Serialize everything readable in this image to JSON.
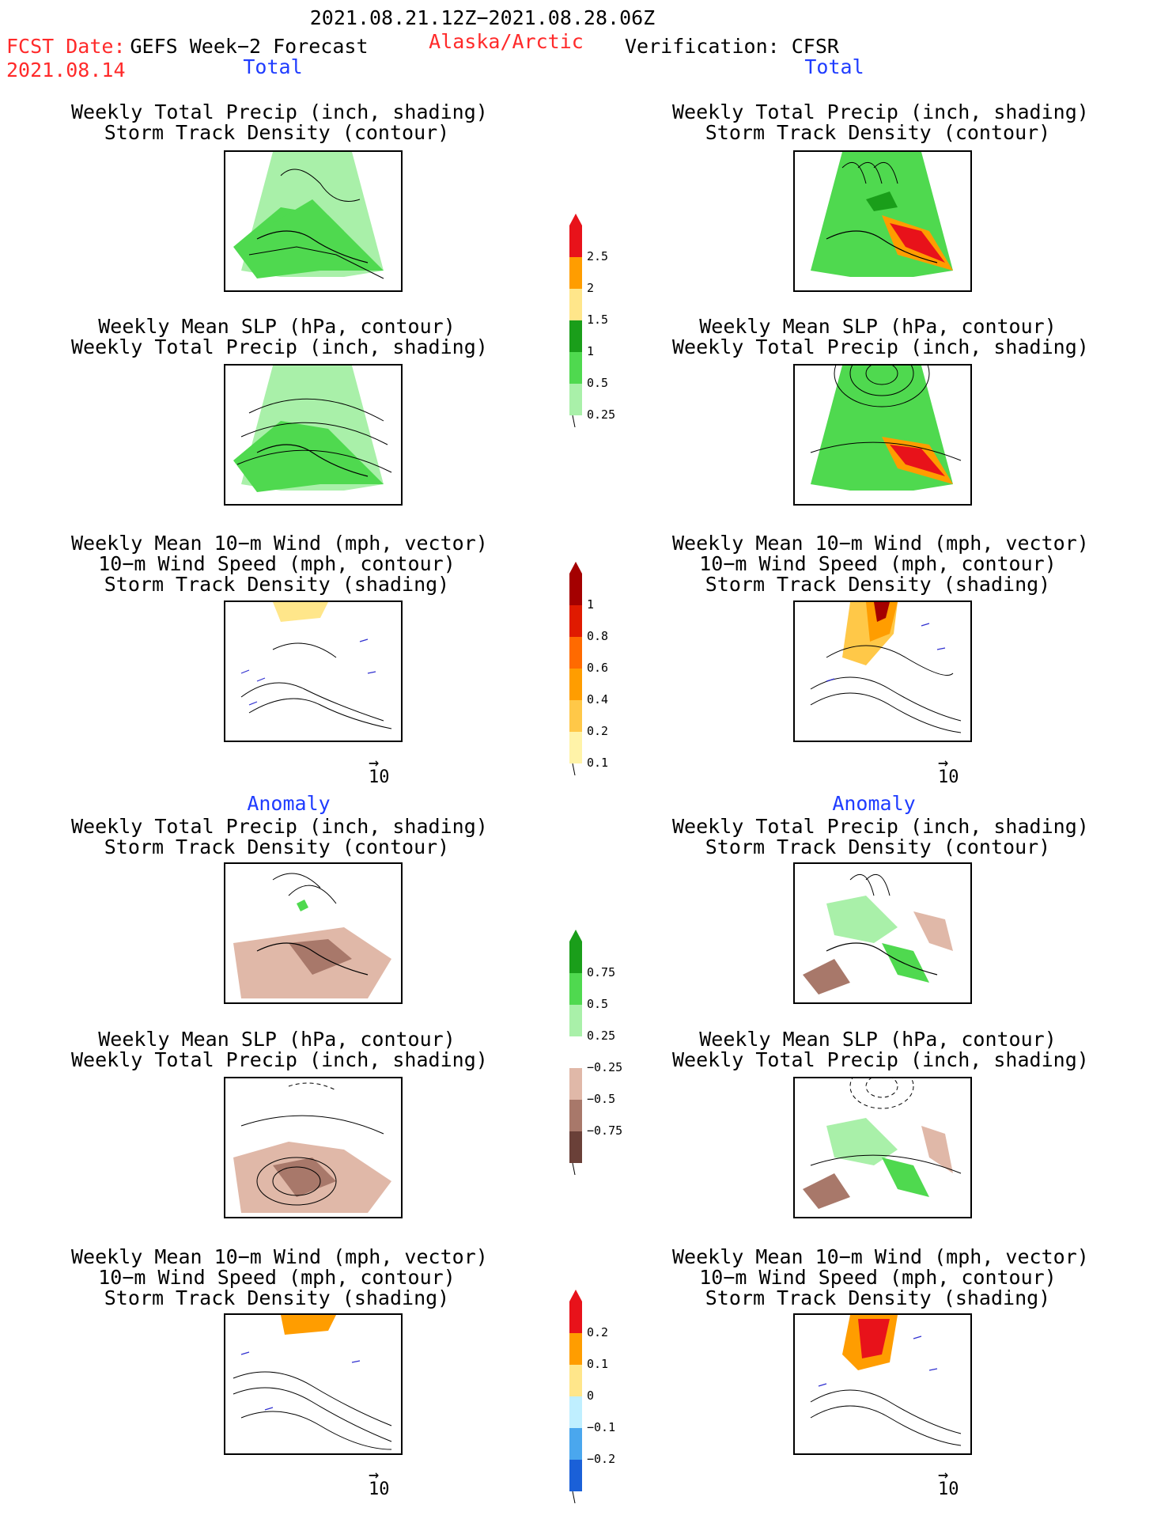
{
  "header": {
    "period": "2021.08.21.12Z−2021.08.28.06Z",
    "fcst_label": "FCST Date:",
    "fcst_date": "2021.08.14",
    "model": "GEFS Week−2 Forecast",
    "region": "Alaska/Arctic",
    "verification": "Verification: CFSR"
  },
  "sections": {
    "total": "Total",
    "anomaly": "Anomaly"
  },
  "titles": {
    "precip_track": [
      "Weekly Total Precip (inch, shading)",
      "Storm Track Density (contour)"
    ],
    "slp_precip": [
      "Weekly Mean SLP (hPa, contour)",
      "Weekly Total Precip (inch, shading)"
    ],
    "wind_track": [
      "Weekly Mean 10−m Wind (mph, vector)",
      "10−m Wind Speed (mph, contour)",
      "Storm Track Density (shading)"
    ]
  },
  "vector_ref": "10",
  "colorbars": [
    {
      "name": "total-precip",
      "labels": [
        "2.5",
        "2",
        "1.5",
        "1",
        "0.5",
        "0.25"
      ],
      "colors": [
        "#e8121a",
        "#ff9d00",
        "#ffe68a",
        "#1a9e1a",
        "#4fd94f",
        "#a9f0a9"
      ]
    },
    {
      "name": "storm-track",
      "labels": [
        "1",
        "0.8",
        "0.6",
        "0.4",
        "0.2",
        "0.1"
      ],
      "colors": [
        "#a40000",
        "#e01a00",
        "#ff6a00",
        "#ff9d00",
        "#ffc848",
        "#fff3a8"
      ]
    },
    {
      "name": "precip-anom",
      "labels": [
        "0.75",
        "0.5",
        "0.25",
        "−0.25",
        "−0.5",
        "−0.75"
      ],
      "colors": [
        "#1a9e1a",
        "#4fd94f",
        "#a9f0a9",
        "#ffffff",
        "#e0b8a8",
        "#a8786a",
        "#6a4038"
      ]
    },
    {
      "name": "track-anom",
      "labels": [
        "0.2",
        "0.1",
        "0",
        "−0.1",
        "−0.2"
      ],
      "colors": [
        "#e8121a",
        "#ff9d00",
        "#ffe68a",
        "#bfefff",
        "#4aa7ee",
        "#1a60d8"
      ]
    }
  ]
}
